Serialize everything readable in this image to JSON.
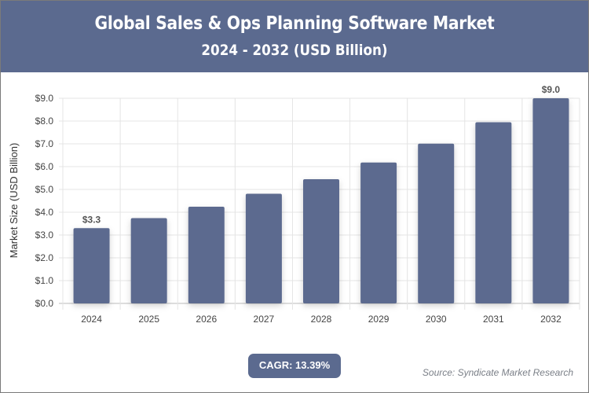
{
  "header": {
    "title": "Global Sales & Ops Planning Software Market",
    "subtitle": "2024 - 2032 (USD Billion)"
  },
  "footer": {
    "cagr": "CAGR: 13.39%",
    "source": "Source: Syndicate Market Research"
  },
  "colors": {
    "bar": "#5b6a8f",
    "header": "#5b6a8f"
  },
  "chart_data": {
    "type": "bar",
    "title": "Global Sales & Ops Planning Software Market",
    "subtitle": "2024 - 2032 (USD Billion)",
    "xlabel": "",
    "ylabel": "Market Size (USD Billion)",
    "categories": [
      "2024",
      "2025",
      "2026",
      "2027",
      "2028",
      "2029",
      "2030",
      "2031",
      "2032"
    ],
    "values": [
      3.3,
      3.74,
      4.24,
      4.81,
      5.45,
      6.18,
      7.01,
      7.95,
      9.0
    ],
    "data_labels": {
      "2024": "$3.3",
      "2032": "$9.0"
    },
    "ylim": [
      0,
      9
    ],
    "yticks": [
      "$0.0",
      "$1.0",
      "$2.0",
      "$3.0",
      "$4.0",
      "$5.0",
      "$6.0",
      "$7.0",
      "$8.0",
      "$9.0"
    ],
    "grid": true,
    "legend": "none"
  }
}
